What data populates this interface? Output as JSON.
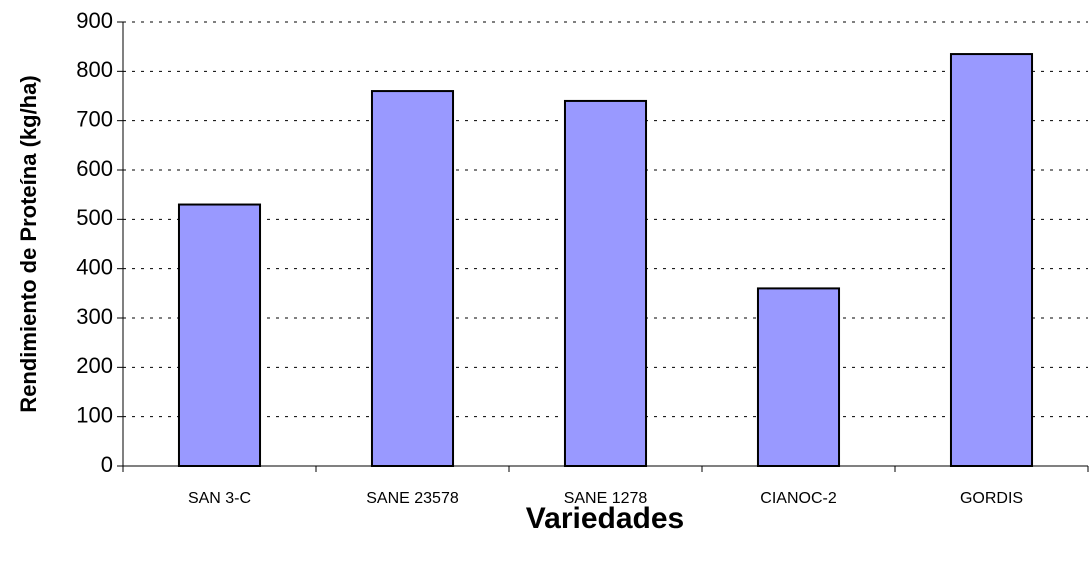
{
  "chart_data": {
    "type": "bar",
    "x_label": "Variedades",
    "y_label": "Rendimiento de Proteína (kg/ha)",
    "categories": [
      "SAN 3-C",
      "SANE 23578",
      "SANE 1278",
      "CIANOC-2",
      "GORDIS"
    ],
    "values": [
      530,
      760,
      740,
      360,
      835
    ],
    "color": "#9999ff",
    "ylim": [
      0,
      900
    ],
    "yticks": [
      0,
      100,
      200,
      300,
      400,
      500,
      600,
      700,
      800,
      900
    ],
    "grid": true
  }
}
